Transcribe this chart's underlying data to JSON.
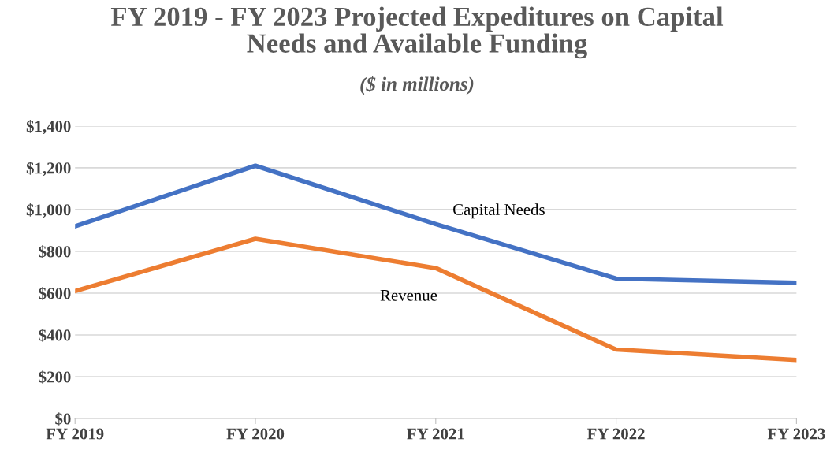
{
  "chart_data": {
    "type": "line",
    "title": "FY 2019 - FY 2023 Projected Expeditures on Capital\nNeeds and Available Funding",
    "subtitle": "($ in millions)",
    "categories": [
      "FY 2019",
      "FY 2020",
      "FY 2021",
      "FY 2022",
      "FY 2023"
    ],
    "series": [
      {
        "name": "Capital Needs",
        "color": "#4472c4",
        "values": [
          920,
          1210,
          930,
          670,
          650
        ]
      },
      {
        "name": "Revenue",
        "color": "#ed7d31",
        "values": [
          610,
          860,
          720,
          330,
          280
        ]
      }
    ],
    "ylim": [
      0,
      1400
    ],
    "yticks": [
      {
        "value": 0,
        "label": "$0"
      },
      {
        "value": 200,
        "label": "$200"
      },
      {
        "value": 400,
        "label": "$400"
      },
      {
        "value": 600,
        "label": "$600"
      },
      {
        "value": 800,
        "label": "$800"
      },
      {
        "value": 1000,
        "label": "$1,000"
      },
      {
        "value": 1200,
        "label": "$1,200"
      },
      {
        "value": 1400,
        "label": "$1,400"
      }
    ],
    "grid": "y",
    "legend": false,
    "marker": "none",
    "line_style": "solid"
  }
}
